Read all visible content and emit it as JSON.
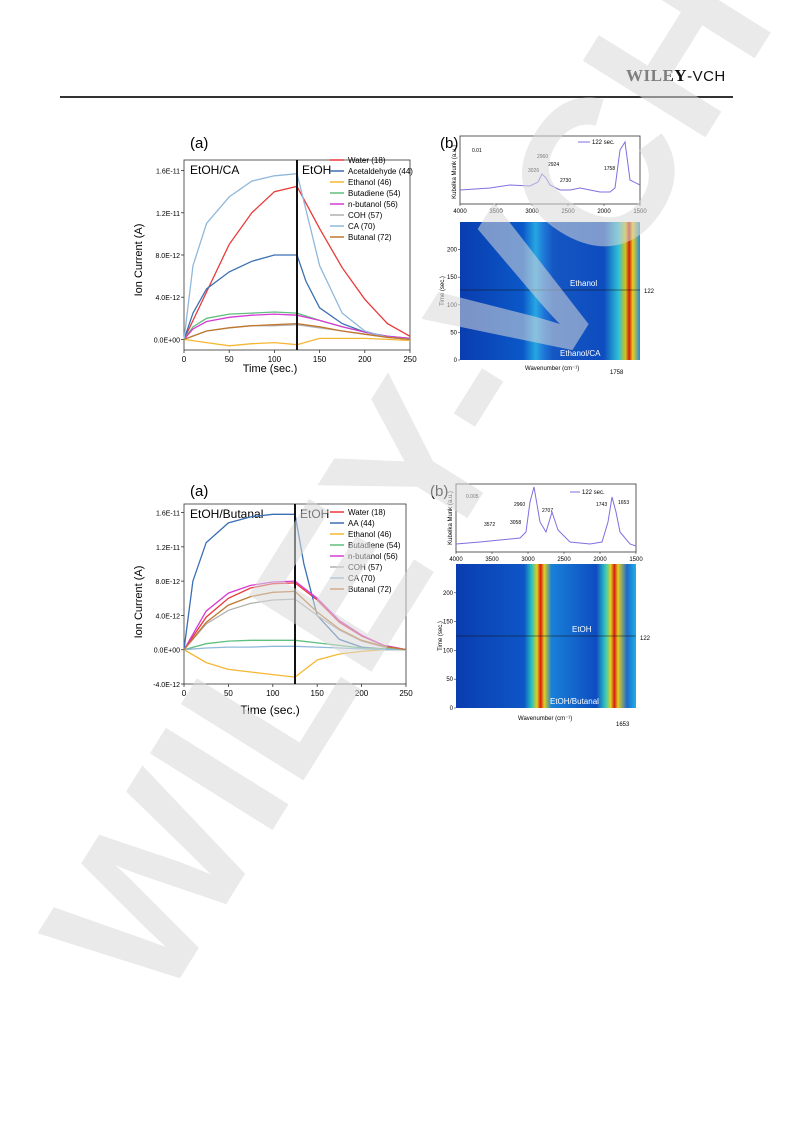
{
  "header": {
    "publisher_main": "WILEY",
    "publisher_sub": "-VCH"
  },
  "watermark": {
    "text": "WILEY-VCH"
  },
  "figures": [
    {
      "panel_a": {
        "label": "(a)",
        "left_region": "EtOH/CA",
        "right_region": "EtOH",
        "xlabel": "Time (sec.)",
        "ylabel": "Ion Current (A)",
        "yticks": [
          "0.0E+00",
          "4.0E-12",
          "8.0E-12",
          "1.2E-11",
          "1.6E-11"
        ],
        "xticks": [
          "0",
          "50",
          "100",
          "150",
          "200",
          "250"
        ],
        "legend": [
          "Water (18)",
          "Acetaldehyde (44)",
          "Ethanol (46)",
          "Butadiene (54)",
          "n-butanol (56)",
          "COH (57)",
          "CA (70)",
          "Butanal (72)"
        ]
      },
      "panel_b": {
        "label": "(b)",
        "legend": "122 sec.",
        "scale": "0.01",
        "ylabel_top": "Kubelka Munk (a.u.)",
        "peaks": [
          "3026",
          "2960",
          "2924",
          "2730",
          "1758"
        ],
        "top_xticks": [
          "4000",
          "3500",
          "3000",
          "2500",
          "2000",
          "1500"
        ],
        "map_ylabel": "Time (sec.)",
        "map_yticks": [
          "0",
          "50",
          "100",
          "150",
          "200"
        ],
        "map_xlabel": "Wavenumber (cm⁻¹)",
        "marker_time": "122",
        "marker_wn": "1758",
        "top_region": "Ethanol",
        "bottom_region": "Ethanol/CA"
      }
    },
    {
      "panel_a": {
        "label": "(a)",
        "left_region": "EtOH/Butanal",
        "right_region": "EtOH",
        "xlabel": "Time (sec.)",
        "ylabel": "Ion Current (A)",
        "yticks": [
          "-4.0E-12",
          "0.0E+00",
          "4.0E-12",
          "8.0E-12",
          "1.2E-11",
          "1.6E-11"
        ],
        "xticks": [
          "0",
          "50",
          "100",
          "150",
          "200",
          "250"
        ],
        "legend": [
          "Water (18)",
          "AA (44)",
          "Ethanol (46)",
          "Butadiene (54)",
          "n-butanol (56)",
          "COH (57)",
          "CA (70)",
          "Butanal (72)"
        ]
      },
      "panel_b": {
        "label": "(b)",
        "legend": "122 sec.",
        "scale": "0.005",
        "ylabel_top": "Kubelka Munk (a.u.)",
        "peaks": [
          "3572",
          "3058",
          "2960",
          "2707",
          "1743",
          "1653"
        ],
        "top_xticks": [
          "4000",
          "3500",
          "3000",
          "2500",
          "2000",
          "1500"
        ],
        "map_ylabel": "Time (sec.)",
        "map_yticks": [
          "0",
          "50",
          "100",
          "150",
          "200"
        ],
        "map_xlabel": "Wavenumber (cm⁻¹)",
        "marker_time": "122",
        "marker_wn": "1653",
        "top_region": "EtOH",
        "bottom_region": "EtOH/Butanal"
      }
    }
  ],
  "colors": {
    "series": [
      "#e8393a",
      "#3a6fb2",
      "#f5b733",
      "#5fbf7f",
      "#d63bd3",
      "#b0b0b0",
      "#8fb8da",
      "#c0782e"
    ]
  },
  "chart_data": [
    {
      "type": "line",
      "xlabel": "Time (sec.)",
      "ylabel": "Ion Current (A)",
      "xlim": [
        0,
        250
      ],
      "ylim": [
        -1e-12,
        1.7e-11
      ],
      "series": [
        {
          "name": "Water (18)",
          "x": [
            0,
            25,
            50,
            75,
            100,
            125,
            150,
            175,
            200,
            225,
            250
          ],
          "values": [
            0,
            4.5e-12,
            9e-12,
            1.2e-11,
            1.4e-11,
            1.45e-11,
            1.05e-11,
            6.8e-12,
            3.8e-12,
            1.5e-12,
            3e-13
          ]
        },
        {
          "name": "Acetaldehyde (44)",
          "x": [
            0,
            10,
            25,
            50,
            75,
            100,
            125,
            135,
            150,
            175,
            200,
            225,
            250
          ],
          "values": [
            0,
            2.5e-12,
            4.8e-12,
            6.4e-12,
            7.4e-12,
            8e-12,
            8e-12,
            5.5e-12,
            3e-12,
            1.5e-12,
            7e-13,
            3e-13,
            1e-13
          ]
        },
        {
          "name": "Ethanol (46)",
          "x": [
            0,
            25,
            50,
            75,
            100,
            125,
            150,
            175,
            200,
            225,
            250
          ],
          "values": [
            0,
            -3e-13,
            -6e-13,
            -4e-13,
            -3e-13,
            -5e-13,
            1e-13,
            1e-13,
            1e-13,
            0,
            -1e-13
          ]
        },
        {
          "name": "Butadiene (54)",
          "x": [
            0,
            10,
            25,
            50,
            75,
            100,
            125,
            150,
            175,
            200,
            225,
            250
          ],
          "values": [
            0,
            1.2e-12,
            2e-12,
            2.4e-12,
            2.5e-12,
            2.6e-12,
            2.5e-12,
            1.8e-12,
            1.2e-12,
            7e-13,
            3e-13,
            1e-13
          ]
        },
        {
          "name": "n-butanol (56)",
          "x": [
            0,
            10,
            25,
            50,
            75,
            100,
            125,
            150,
            175,
            200,
            225,
            250
          ],
          "values": [
            0,
            1e-12,
            1.7e-12,
            2.1e-12,
            2.3e-12,
            2.4e-12,
            2.3e-12,
            1.8e-12,
            1.2e-12,
            7e-13,
            3e-13,
            1e-13
          ]
        },
        {
          "name": "COH (57)",
          "x": [
            0,
            25,
            50,
            75,
            100,
            125,
            150,
            175,
            200,
            225,
            250
          ],
          "values": [
            0,
            8e-13,
            1.1e-12,
            1.3e-12,
            1.3e-12,
            1.4e-12,
            1.1e-12,
            8e-13,
            5e-13,
            2e-13,
            0
          ]
        },
        {
          "name": "CA (70)",
          "x": [
            0,
            10,
            25,
            50,
            75,
            100,
            125,
            140,
            150,
            175,
            200,
            225,
            250
          ],
          "values": [
            0,
            7e-12,
            1.1e-11,
            1.35e-11,
            1.5e-11,
            1.55e-11,
            1.57e-11,
            1.05e-11,
            7e-12,
            2.5e-12,
            8e-13,
            2e-13,
            0
          ]
        },
        {
          "name": "Butanal (72)",
          "x": [
            0,
            25,
            50,
            75,
            100,
            125,
            150,
            175,
            200,
            225,
            250
          ],
          "values": [
            0,
            8e-13,
            1.1e-12,
            1.3e-12,
            1.4e-12,
            1.5e-12,
            1.2e-12,
            8e-13,
            5e-13,
            2e-13,
            0
          ]
        }
      ]
    },
    {
      "type": "line",
      "xlabel": "Time (sec.)",
      "ylabel": "Ion Current (A)",
      "xlim": [
        0,
        250
      ],
      "ylim": [
        -4e-12,
        1.7e-11
      ],
      "series": [
        {
          "name": "Water (18)",
          "x": [
            0,
            25,
            50,
            75,
            100,
            125,
            150,
            175,
            200,
            225,
            250
          ],
          "values": [
            0,
            3.8e-12,
            6e-12,
            7.2e-12,
            7.7e-12,
            7.8e-12,
            5.8e-12,
            3.2e-12,
            1.6e-12,
            5e-13,
            0
          ]
        },
        {
          "name": "AA (44)",
          "x": [
            0,
            10,
            25,
            50,
            75,
            100,
            125,
            135,
            150,
            175,
            200,
            225,
            250
          ],
          "values": [
            0,
            8e-12,
            1.25e-11,
            1.48e-11,
            1.55e-11,
            1.58e-11,
            1.58e-11,
            1e-11,
            4e-12,
            1.2e-12,
            3e-13,
            1e-13,
            0
          ]
        },
        {
          "name": "Ethanol (46)",
          "x": [
            0,
            25,
            50,
            75,
            100,
            125,
            150,
            175,
            200,
            225,
            250
          ],
          "values": [
            0,
            -1.5e-12,
            -2.3e-12,
            -2.6e-12,
            -2.9e-12,
            -3.2e-12,
            -1.2e-12,
            -5e-13,
            -2e-13,
            0,
            0
          ]
        },
        {
          "name": "Butadiene (54)",
          "x": [
            0,
            25,
            50,
            75,
            100,
            125,
            150,
            175,
            200,
            225,
            250
          ],
          "values": [
            0,
            7e-13,
            1e-12,
            1.1e-12,
            1.1e-12,
            1.1e-12,
            8e-13,
            5e-13,
            2e-13,
            1e-13,
            0
          ]
        },
        {
          "name": "n-butanol (56)",
          "x": [
            0,
            25,
            50,
            75,
            100,
            125,
            150,
            175,
            200,
            225,
            250
          ],
          "values": [
            0,
            4.5e-12,
            6.6e-12,
            7.5e-12,
            7.9e-12,
            8e-12,
            6e-12,
            3.4e-12,
            1.7e-12,
            5e-13,
            0
          ]
        },
        {
          "name": "COH (57)",
          "x": [
            0,
            25,
            50,
            75,
            100,
            125,
            150,
            175,
            200,
            225,
            250
          ],
          "values": [
            0,
            3e-12,
            4.6e-12,
            5.4e-12,
            5.8e-12,
            5.9e-12,
            4e-12,
            2.3e-12,
            1e-12,
            3e-13,
            0
          ]
        },
        {
          "name": "CA (70)",
          "x": [
            0,
            25,
            50,
            75,
            100,
            125,
            150,
            175,
            200,
            225,
            250
          ],
          "values": [
            0,
            2e-13,
            3e-13,
            3e-13,
            4e-13,
            4e-13,
            3e-13,
            2e-13,
            1e-13,
            0,
            0
          ]
        },
        {
          "name": "Butanal (72)",
          "x": [
            0,
            25,
            50,
            75,
            100,
            125,
            150,
            175,
            200,
            225,
            250
          ],
          "values": [
            0,
            3.2e-12,
            5.2e-12,
            6.2e-12,
            6.7e-12,
            6.8e-12,
            4.4e-12,
            2.4e-12,
            1.1e-12,
            4e-13,
            0
          ]
        }
      ]
    }
  ]
}
